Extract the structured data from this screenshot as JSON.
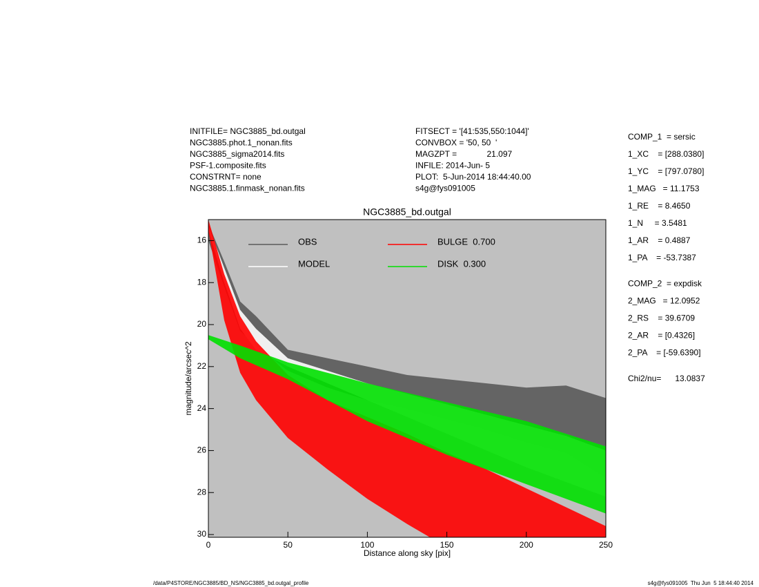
{
  "chart_data": {
    "type": "band",
    "title": "NGC3885_bd.outgal",
    "x_label": "Distance along sky [pix]",
    "y_label": "magnitude/arcsec^2",
    "xlim": [
      0,
      250
    ],
    "xticks": [
      0,
      50,
      100,
      150,
      200,
      250
    ],
    "ylim": [
      30.13,
      15
    ],
    "yticks": [
      16,
      18,
      20,
      22,
      24,
      26,
      28,
      30
    ],
    "background": "#c0c0c0",
    "series": [
      {
        "name": "OBS",
        "color": "#5a5a5a",
        "x": [
          0,
          10,
          20,
          30,
          50,
          75,
          100,
          125,
          150,
          175,
          200,
          225,
          250
        ],
        "low": [
          15.2,
          17.0,
          18.9,
          19.6,
          21.2,
          21.6,
          22.0,
          22.4,
          22.6,
          22.8,
          23.0,
          22.9,
          23.5
        ],
        "high": [
          16.0,
          18.2,
          20.3,
          21.0,
          22.2,
          23.0,
          23.6,
          24.0,
          24.5,
          25.0,
          25.6,
          26.1,
          27.3
        ]
      },
      {
        "name": "MODEL",
        "color": "#ffffff",
        "x": [
          0,
          10,
          20,
          30,
          50,
          75,
          100,
          125,
          150,
          175,
          200,
          225,
          250
        ],
        "low": [
          15.3,
          17.3,
          19.3,
          20.2,
          21.6,
          22.2,
          22.8,
          23.3,
          23.8,
          24.3,
          24.8,
          25.3,
          26.0
        ],
        "high": [
          15.5,
          18.0,
          20.2,
          21.2,
          22.0,
          22.8,
          23.6,
          24.4,
          25.2,
          26.0,
          26.8,
          27.5,
          28.2
        ]
      },
      {
        "name": "BULGE  0.700",
        "color": "#ff0000",
        "x": [
          0,
          10,
          20,
          30,
          50,
          75,
          100,
          125,
          150,
          175,
          200,
          225,
          250
        ],
        "low": [
          15.0,
          17.6,
          19.6,
          20.8,
          22.4,
          23.6,
          24.4,
          25.2,
          26.1,
          26.9,
          27.8,
          28.7,
          29.6
        ],
        "high": [
          15.5,
          19.8,
          22.3,
          23.6,
          25.4,
          26.9,
          28.3,
          29.5,
          30.6,
          31.5,
          32.0,
          32.5,
          33.0
        ]
      },
      {
        "name": "DISK  0.300",
        "color": "#00e000",
        "x": [
          0,
          20,
          50,
          100,
          150,
          200,
          250
        ],
        "low": [
          20.5,
          21.0,
          21.8,
          22.8,
          23.7,
          24.6,
          25.8
        ],
        "high": [
          20.7,
          21.6,
          22.6,
          24.6,
          26.2,
          27.6,
          29.0
        ]
      }
    ]
  },
  "header": {
    "left": [
      "INITFILE= NGC3885_bd.outgal",
      "NGC3885.phot.1_nonan.fits",
      "NGC3885_sigma2014.fits",
      "PSF-1.composite.fits",
      "CONSTRNT= none",
      "NGC3885.1.finmask_nonan.fits"
    ],
    "middle": [
      "FITSECT = '[41:535,550:1044]'",
      "CONVBOX = '50, 50  '",
      "MAGZPT =             21.097",
      "INFILE: 2014-Jun- 5",
      "PLOT:  5-Jun-2014 18:44:40.00",
      "s4g@fys091005"
    ]
  },
  "components": [
    [
      "COMP_1  = sersic",
      "1_XC    = [288.0380]",
      "1_YC    = [797.0780]",
      "1_MAG   = 11.1753",
      "1_RE    = 8.4650",
      "1_N     = 3.5481",
      "1_AR    = 0.4887",
      "1_PA    = -53.7387"
    ],
    [
      "COMP_2  = expdisk",
      "2_MAG   = 12.0952",
      "2_RS    = 39.6709",
      "2_AR    = [0.4326]",
      "2_PA    = [-59.6390]"
    ],
    [
      "Chi2/nu=      13.0837"
    ]
  ],
  "footer": {
    "left": "/data/P4STORE/NGC3885/BD_NS/NGC3885_bd.outgal_profile",
    "right": "s4g@fys091005  Thu Jun  5 18:44:40 2014"
  }
}
